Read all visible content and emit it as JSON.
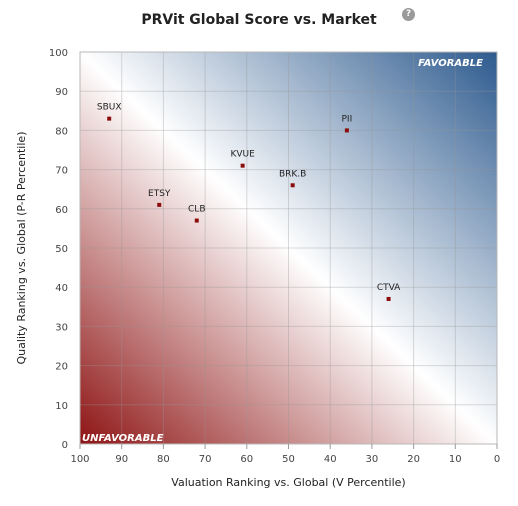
{
  "header": {
    "title": "PRVit Global Score vs. Market",
    "help_label": "?"
  },
  "chart_data": {
    "type": "scatter",
    "title": "PRVit Global Score vs. Market",
    "xlabel": "Valuation Ranking vs. Global (V Percentile)",
    "ylabel": "Quality Ranking vs. Global (P-R Percentile)",
    "xlim": [
      100,
      0
    ],
    "ylim": [
      0,
      100
    ],
    "x_reversed": true,
    "xticks": [
      100,
      90,
      80,
      70,
      60,
      50,
      40,
      30,
      20,
      10,
      0
    ],
    "yticks": [
      0,
      10,
      20,
      30,
      40,
      50,
      60,
      70,
      80,
      90,
      100
    ],
    "grid": true,
    "zone_labels": {
      "top_right": "FAVORABLE",
      "bottom_left": "UNFAVORABLE"
    },
    "colors": {
      "favorable": "#2d5a8e",
      "unfavorable": "#8e1414",
      "point": "#8b0d0d"
    },
    "points": [
      {
        "label": "SBUX",
        "x": 93,
        "y": 83
      },
      {
        "label": "PII",
        "x": 36,
        "y": 80
      },
      {
        "label": "KVUE",
        "x": 61,
        "y": 71
      },
      {
        "label": "BRK.B",
        "x": 49,
        "y": 66
      },
      {
        "label": "ETSY",
        "x": 81,
        "y": 61
      },
      {
        "label": "CLB",
        "x": 72,
        "y": 57
      },
      {
        "label": "CTVA",
        "x": 26,
        "y": 37
      }
    ]
  }
}
